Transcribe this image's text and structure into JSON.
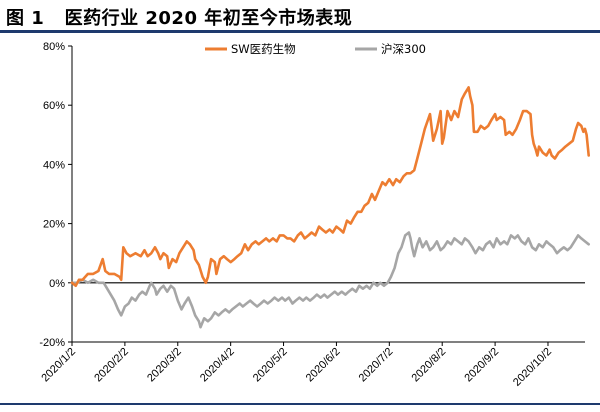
{
  "figure": {
    "label": "图 1",
    "title": "医药行业 2020 年初至今市场表现"
  },
  "chart_data": {
    "type": "line",
    "xlabel": "",
    "ylabel": "",
    "x_tick_labels": [
      "2020/1/2",
      "2020/2/2",
      "2020/3/2",
      "2020/4/2",
      "2020/5/2",
      "2020/6/2",
      "2020/7/2",
      "2020/8/2",
      "2020/9/2",
      "2020/10/2"
    ],
    "y_ticks": [
      -0.2,
      0,
      0.2,
      0.4,
      0.6,
      0.8
    ],
    "y_tick_labels": [
      "-20%",
      "0%",
      "20%",
      "40%",
      "60%",
      "80%"
    ],
    "ylim": [
      -0.2,
      0.8
    ],
    "xlim": [
      0,
      9.7
    ],
    "grid": false,
    "legend_position": "top",
    "series": [
      {
        "name": "SW医药生物",
        "color": "#ed7d31",
        "points": [
          [
            0.0,
            0.0
          ],
          [
            0.07,
            -0.01
          ],
          [
            0.13,
            0.01
          ],
          [
            0.2,
            0.01
          ],
          [
            0.3,
            0.03
          ],
          [
            0.4,
            0.03
          ],
          [
            0.5,
            0.04
          ],
          [
            0.58,
            0.08
          ],
          [
            0.63,
            0.04
          ],
          [
            0.7,
            0.03
          ],
          [
            0.8,
            0.03
          ],
          [
            0.9,
            0.02
          ],
          [
            0.93,
            0.01
          ],
          [
            0.97,
            0.12
          ],
          [
            1.03,
            0.1
          ],
          [
            1.1,
            0.09
          ],
          [
            1.2,
            0.1
          ],
          [
            1.3,
            0.09
          ],
          [
            1.37,
            0.11
          ],
          [
            1.43,
            0.09
          ],
          [
            1.5,
            0.1
          ],
          [
            1.57,
            0.12
          ],
          [
            1.63,
            0.1
          ],
          [
            1.67,
            0.08
          ],
          [
            1.73,
            0.1
          ],
          [
            1.8,
            0.09
          ],
          [
            1.83,
            0.05
          ],
          [
            1.9,
            0.08
          ],
          [
            1.97,
            0.07
          ],
          [
            2.03,
            0.1
          ],
          [
            2.1,
            0.12
          ],
          [
            2.17,
            0.14
          ],
          [
            2.23,
            0.13
          ],
          [
            2.3,
            0.11
          ],
          [
            2.33,
            0.08
          ],
          [
            2.4,
            0.06
          ],
          [
            2.47,
            0.02
          ],
          [
            2.53,
            0.0
          ],
          [
            2.57,
            0.02
          ],
          [
            2.63,
            0.08
          ],
          [
            2.7,
            0.07
          ],
          [
            2.73,
            0.03
          ],
          [
            2.8,
            0.08
          ],
          [
            2.87,
            0.09
          ],
          [
            2.93,
            0.08
          ],
          [
            3.0,
            0.07
          ],
          [
            3.07,
            0.08
          ],
          [
            3.13,
            0.09
          ],
          [
            3.2,
            0.1
          ],
          [
            3.27,
            0.13
          ],
          [
            3.33,
            0.11
          ],
          [
            3.4,
            0.13
          ],
          [
            3.47,
            0.14
          ],
          [
            3.53,
            0.13
          ],
          [
            3.6,
            0.14
          ],
          [
            3.67,
            0.15
          ],
          [
            3.73,
            0.14
          ],
          [
            3.8,
            0.15
          ],
          [
            3.87,
            0.14
          ],
          [
            3.93,
            0.16
          ],
          [
            4.0,
            0.16
          ],
          [
            4.07,
            0.15
          ],
          [
            4.13,
            0.15
          ],
          [
            4.2,
            0.14
          ],
          [
            4.27,
            0.16
          ],
          [
            4.33,
            0.17
          ],
          [
            4.4,
            0.15
          ],
          [
            4.47,
            0.16
          ],
          [
            4.53,
            0.17
          ],
          [
            4.6,
            0.16
          ],
          [
            4.67,
            0.19
          ],
          [
            4.73,
            0.18
          ],
          [
            4.8,
            0.17
          ],
          [
            4.87,
            0.18
          ],
          [
            4.93,
            0.17
          ],
          [
            5.0,
            0.19
          ],
          [
            5.07,
            0.18
          ],
          [
            5.13,
            0.17
          ],
          [
            5.2,
            0.21
          ],
          [
            5.27,
            0.2
          ],
          [
            5.33,
            0.22
          ],
          [
            5.4,
            0.24
          ],
          [
            5.47,
            0.24
          ],
          [
            5.53,
            0.26
          ],
          [
            5.6,
            0.27
          ],
          [
            5.67,
            0.3
          ],
          [
            5.73,
            0.28
          ],
          [
            5.8,
            0.31
          ],
          [
            5.87,
            0.34
          ],
          [
            5.93,
            0.33
          ],
          [
            6.0,
            0.35
          ],
          [
            6.07,
            0.33
          ],
          [
            6.13,
            0.35
          ],
          [
            6.2,
            0.34
          ],
          [
            6.27,
            0.36
          ],
          [
            6.33,
            0.37
          ],
          [
            6.4,
            0.37
          ],
          [
            6.47,
            0.38
          ],
          [
            6.53,
            0.42
          ],
          [
            6.6,
            0.47
          ],
          [
            6.67,
            0.52
          ],
          [
            6.73,
            0.55
          ],
          [
            6.77,
            0.57
          ],
          [
            6.83,
            0.48
          ],
          [
            6.9,
            0.52
          ],
          [
            6.97,
            0.58
          ],
          [
            7.0,
            0.47
          ],
          [
            7.03,
            0.49
          ],
          [
            7.1,
            0.58
          ],
          [
            7.17,
            0.55
          ],
          [
            7.23,
            0.58
          ],
          [
            7.3,
            0.56
          ],
          [
            7.37,
            0.62
          ],
          [
            7.43,
            0.64
          ],
          [
            7.5,
            0.66
          ],
          [
            7.53,
            0.63
          ],
          [
            7.57,
            0.6
          ],
          [
            7.6,
            0.51
          ],
          [
            7.67,
            0.51
          ],
          [
            7.73,
            0.53
          ],
          [
            7.8,
            0.52
          ],
          [
            7.87,
            0.53
          ],
          [
            7.93,
            0.55
          ],
          [
            8.0,
            0.57
          ],
          [
            8.03,
            0.55
          ],
          [
            8.1,
            0.56
          ],
          [
            8.17,
            0.55
          ],
          [
            8.2,
            0.5
          ],
          [
            8.27,
            0.51
          ],
          [
            8.33,
            0.5
          ],
          [
            8.4,
            0.52
          ],
          [
            8.47,
            0.55
          ],
          [
            8.53,
            0.58
          ],
          [
            8.6,
            0.58
          ],
          [
            8.67,
            0.57
          ],
          [
            8.7,
            0.5
          ],
          [
            8.73,
            0.47
          ],
          [
            8.77,
            0.45
          ],
          [
            8.8,
            0.43
          ],
          [
            8.83,
            0.46
          ],
          [
            8.9,
            0.44
          ],
          [
            8.97,
            0.43
          ],
          [
            9.03,
            0.45
          ],
          [
            9.07,
            0.43
          ],
          [
            9.13,
            0.42
          ],
          [
            9.2,
            0.44
          ],
          [
            9.27,
            0.45
          ],
          [
            9.33,
            0.46
          ],
          [
            9.4,
            0.47
          ],
          [
            9.47,
            0.48
          ],
          [
            9.53,
            0.52
          ],
          [
            9.57,
            0.54
          ],
          [
            9.63,
            0.53
          ],
          [
            9.67,
            0.51
          ],
          [
            9.7,
            0.52
          ],
          [
            9.73,
            0.5
          ],
          [
            9.77,
            0.43
          ]
        ]
      },
      {
        "name": "沪深300",
        "color": "#a6a6a6",
        "points": [
          [
            0.0,
            0.0
          ],
          [
            0.1,
            0.0
          ],
          [
            0.2,
            0.01
          ],
          [
            0.3,
            0.0
          ],
          [
            0.4,
            0.01
          ],
          [
            0.5,
            0.0
          ],
          [
            0.6,
            0.0
          ],
          [
            0.7,
            -0.03
          ],
          [
            0.8,
            -0.06
          ],
          [
            0.87,
            -0.09
          ],
          [
            0.93,
            -0.11
          ],
          [
            1.0,
            -0.08
          ],
          [
            1.07,
            -0.07
          ],
          [
            1.13,
            -0.05
          ],
          [
            1.2,
            -0.06
          ],
          [
            1.27,
            -0.04
          ],
          [
            1.33,
            -0.03
          ],
          [
            1.4,
            -0.04
          ],
          [
            1.47,
            -0.01
          ],
          [
            1.5,
            0.0
          ],
          [
            1.57,
            -0.02
          ],
          [
            1.6,
            -0.04
          ],
          [
            1.67,
            -0.02
          ],
          [
            1.73,
            -0.01
          ],
          [
            1.8,
            -0.03
          ],
          [
            1.87,
            -0.01
          ],
          [
            1.93,
            -0.02
          ],
          [
            2.0,
            -0.06
          ],
          [
            2.07,
            -0.09
          ],
          [
            2.13,
            -0.07
          ],
          [
            2.2,
            -0.05
          ],
          [
            2.27,
            -0.08
          ],
          [
            2.33,
            -0.11
          ],
          [
            2.4,
            -0.13
          ],
          [
            2.43,
            -0.15
          ],
          [
            2.5,
            -0.12
          ],
          [
            2.57,
            -0.13
          ],
          [
            2.63,
            -0.12
          ],
          [
            2.7,
            -0.1
          ],
          [
            2.77,
            -0.11
          ],
          [
            2.83,
            -0.1
          ],
          [
            2.9,
            -0.09
          ],
          [
            2.97,
            -0.1
          ],
          [
            3.03,
            -0.09
          ],
          [
            3.1,
            -0.08
          ],
          [
            3.17,
            -0.07
          ],
          [
            3.23,
            -0.08
          ],
          [
            3.3,
            -0.07
          ],
          [
            3.37,
            -0.06
          ],
          [
            3.43,
            -0.07
          ],
          [
            3.5,
            -0.08
          ],
          [
            3.57,
            -0.07
          ],
          [
            3.63,
            -0.06
          ],
          [
            3.7,
            -0.07
          ],
          [
            3.77,
            -0.06
          ],
          [
            3.83,
            -0.05
          ],
          [
            3.9,
            -0.06
          ],
          [
            3.97,
            -0.05
          ],
          [
            4.03,
            -0.06
          ],
          [
            4.1,
            -0.05
          ],
          [
            4.17,
            -0.07
          ],
          [
            4.23,
            -0.06
          ],
          [
            4.3,
            -0.05
          ],
          [
            4.37,
            -0.06
          ],
          [
            4.43,
            -0.05
          ],
          [
            4.5,
            -0.06
          ],
          [
            4.57,
            -0.05
          ],
          [
            4.63,
            -0.04
          ],
          [
            4.7,
            -0.05
          ],
          [
            4.77,
            -0.04
          ],
          [
            4.83,
            -0.05
          ],
          [
            4.9,
            -0.04
          ],
          [
            4.97,
            -0.03
          ],
          [
            5.03,
            -0.04
          ],
          [
            5.1,
            -0.03
          ],
          [
            5.17,
            -0.04
          ],
          [
            5.23,
            -0.03
          ],
          [
            5.3,
            -0.02
          ],
          [
            5.37,
            -0.03
          ],
          [
            5.43,
            -0.01
          ],
          [
            5.5,
            -0.02
          ],
          [
            5.57,
            -0.01
          ],
          [
            5.63,
            -0.02
          ],
          [
            5.7,
            0.0
          ],
          [
            5.77,
            -0.01
          ],
          [
            5.83,
            0.0
          ],
          [
            5.9,
            -0.01
          ],
          [
            5.97,
            0.0
          ],
          [
            6.03,
            0.02
          ],
          [
            6.1,
            0.05
          ],
          [
            6.17,
            0.1
          ],
          [
            6.23,
            0.12
          ],
          [
            6.3,
            0.16
          ],
          [
            6.37,
            0.17
          ],
          [
            6.4,
            0.15
          ],
          [
            6.43,
            0.12
          ],
          [
            6.47,
            0.09
          ],
          [
            6.53,
            0.13
          ],
          [
            6.57,
            0.15
          ],
          [
            6.63,
            0.12
          ],
          [
            6.7,
            0.14
          ],
          [
            6.77,
            0.11
          ],
          [
            6.83,
            0.12
          ],
          [
            6.9,
            0.14
          ],
          [
            6.97,
            0.11
          ],
          [
            7.03,
            0.12
          ],
          [
            7.1,
            0.14
          ],
          [
            7.17,
            0.13
          ],
          [
            7.23,
            0.15
          ],
          [
            7.3,
            0.14
          ],
          [
            7.37,
            0.13
          ],
          [
            7.43,
            0.15
          ],
          [
            7.5,
            0.14
          ],
          [
            7.57,
            0.12
          ],
          [
            7.63,
            0.1
          ],
          [
            7.7,
            0.12
          ],
          [
            7.77,
            0.11
          ],
          [
            7.83,
            0.13
          ],
          [
            7.9,
            0.14
          ],
          [
            7.97,
            0.12
          ],
          [
            8.03,
            0.15
          ],
          [
            8.1,
            0.13
          ],
          [
            8.17,
            0.14
          ],
          [
            8.23,
            0.13
          ],
          [
            8.3,
            0.16
          ],
          [
            8.37,
            0.15
          ],
          [
            8.43,
            0.16
          ],
          [
            8.5,
            0.14
          ],
          [
            8.57,
            0.13
          ],
          [
            8.63,
            0.15
          ],
          [
            8.7,
            0.12
          ],
          [
            8.77,
            0.11
          ],
          [
            8.83,
            0.13
          ],
          [
            8.9,
            0.12
          ],
          [
            8.97,
            0.14
          ],
          [
            9.03,
            0.13
          ],
          [
            9.1,
            0.12
          ],
          [
            9.17,
            0.1
          ],
          [
            9.23,
            0.11
          ],
          [
            9.3,
            0.12
          ],
          [
            9.37,
            0.11
          ],
          [
            9.43,
            0.12
          ],
          [
            9.5,
            0.14
          ],
          [
            9.57,
            0.16
          ],
          [
            9.63,
            0.15
          ],
          [
            9.7,
            0.14
          ],
          [
            9.77,
            0.13
          ]
        ]
      }
    ]
  }
}
